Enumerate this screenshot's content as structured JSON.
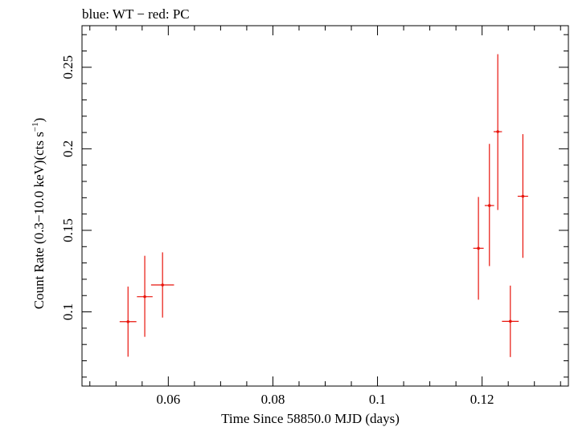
{
  "chart_data": {
    "type": "scatter",
    "title": "blue: WT − red: PC",
    "xlabel": "Time Since 58850.0 MJD (days)",
    "ylabel_main": "Count Rate (0.3−10.0 keV)(cts s",
    "ylabel_sup": "−1",
    "ylabel_end": ")",
    "xlim": [
      0.0435,
      0.1365
    ],
    "ylim": [
      0.0545,
      0.2755
    ],
    "x_ticks": [
      0.06,
      0.08,
      0.1,
      0.12
    ],
    "x_tick_labels": [
      "0.06",
      "0.08",
      "0.1",
      "0.12"
    ],
    "y_ticks": [
      0.1,
      0.15,
      0.2,
      0.25
    ],
    "y_tick_labels": [
      "0.1",
      "0.15",
      "0.2",
      "0.25"
    ],
    "grid": false,
    "series": [
      {
        "color": "#e8140c",
        "points": [
          {
            "x": 0.0523,
            "xerr": 0.0016,
            "y": 0.094,
            "ylo": 0.0725,
            "yhi": 0.1155
          },
          {
            "x": 0.0555,
            "xerr": 0.0015,
            "y": 0.1093,
            "ylo": 0.0847,
            "yhi": 0.1344
          },
          {
            "x": 0.0589,
            "xerr": 0.0022,
            "y": 0.1165,
            "ylo": 0.0965,
            "yhi": 0.1365
          },
          {
            "x": 0.1193,
            "xerr": 0.001,
            "y": 0.139,
            "ylo": 0.1075,
            "yhi": 0.1705
          },
          {
            "x": 0.1214,
            "xerr": 0.0009,
            "y": 0.1652,
            "ylo": 0.1281,
            "yhi": 0.203
          },
          {
            "x": 0.123,
            "xerr": 0.0008,
            "y": 0.2105,
            "ylo": 0.1625,
            "yhi": 0.258
          },
          {
            "x": 0.1254,
            "xerr": 0.0016,
            "y": 0.0942,
            "ylo": 0.0723,
            "yhi": 0.1161
          },
          {
            "x": 0.1278,
            "xerr": 0.001,
            "y": 0.1709,
            "ylo": 0.1331,
            "yhi": 0.209
          }
        ]
      }
    ]
  }
}
